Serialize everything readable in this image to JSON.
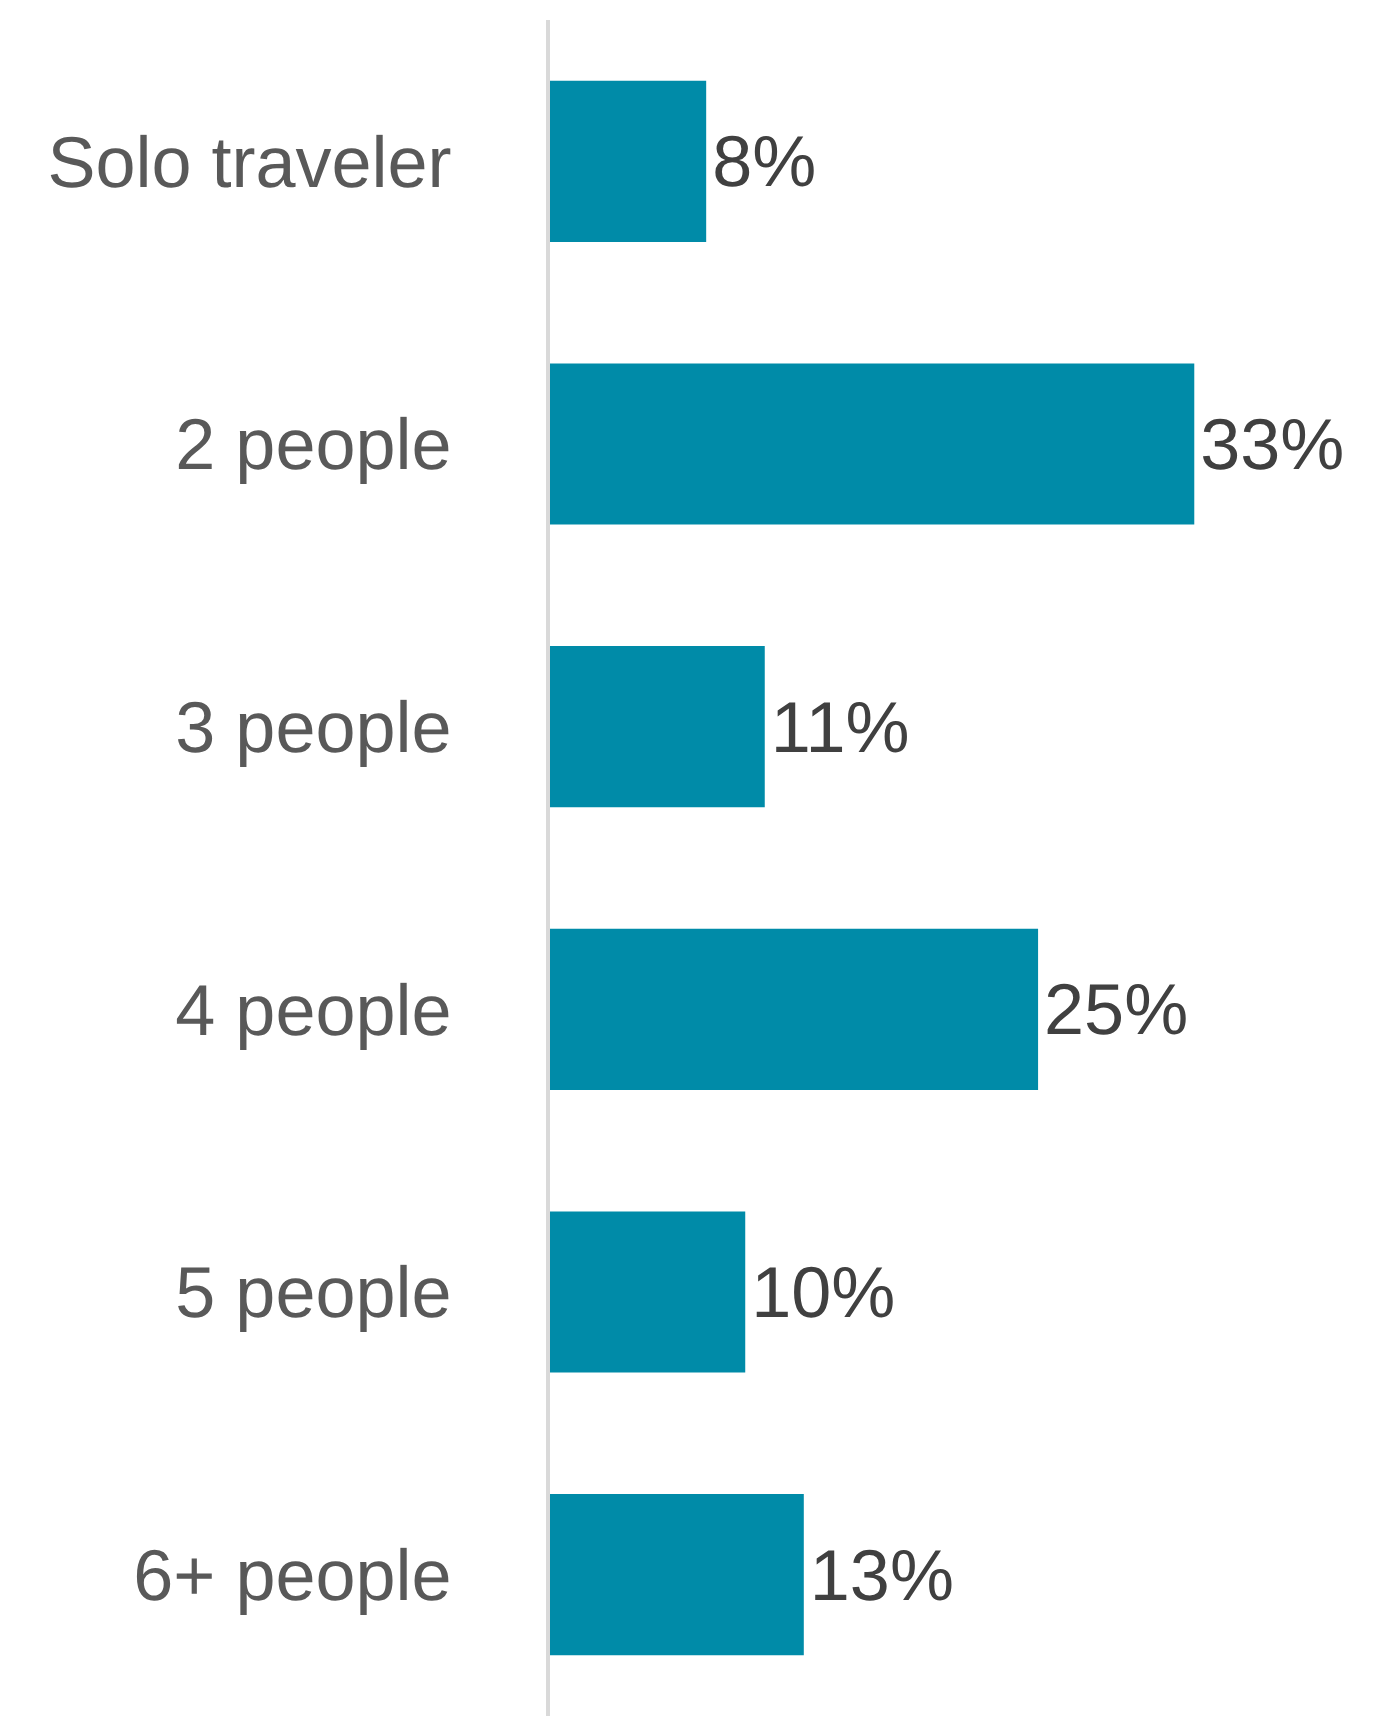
{
  "chart_data": {
    "type": "bar",
    "orientation": "horizontal",
    "categories": [
      "Solo traveler",
      "2 people",
      "3 people",
      "4 people",
      "5 people",
      "6+ people"
    ],
    "values": [
      8,
      33,
      11,
      25,
      10,
      13
    ],
    "value_labels": [
      "8%",
      "33%",
      "11%",
      "25%",
      "10%",
      "13%"
    ],
    "color": "#008ba8"
  }
}
